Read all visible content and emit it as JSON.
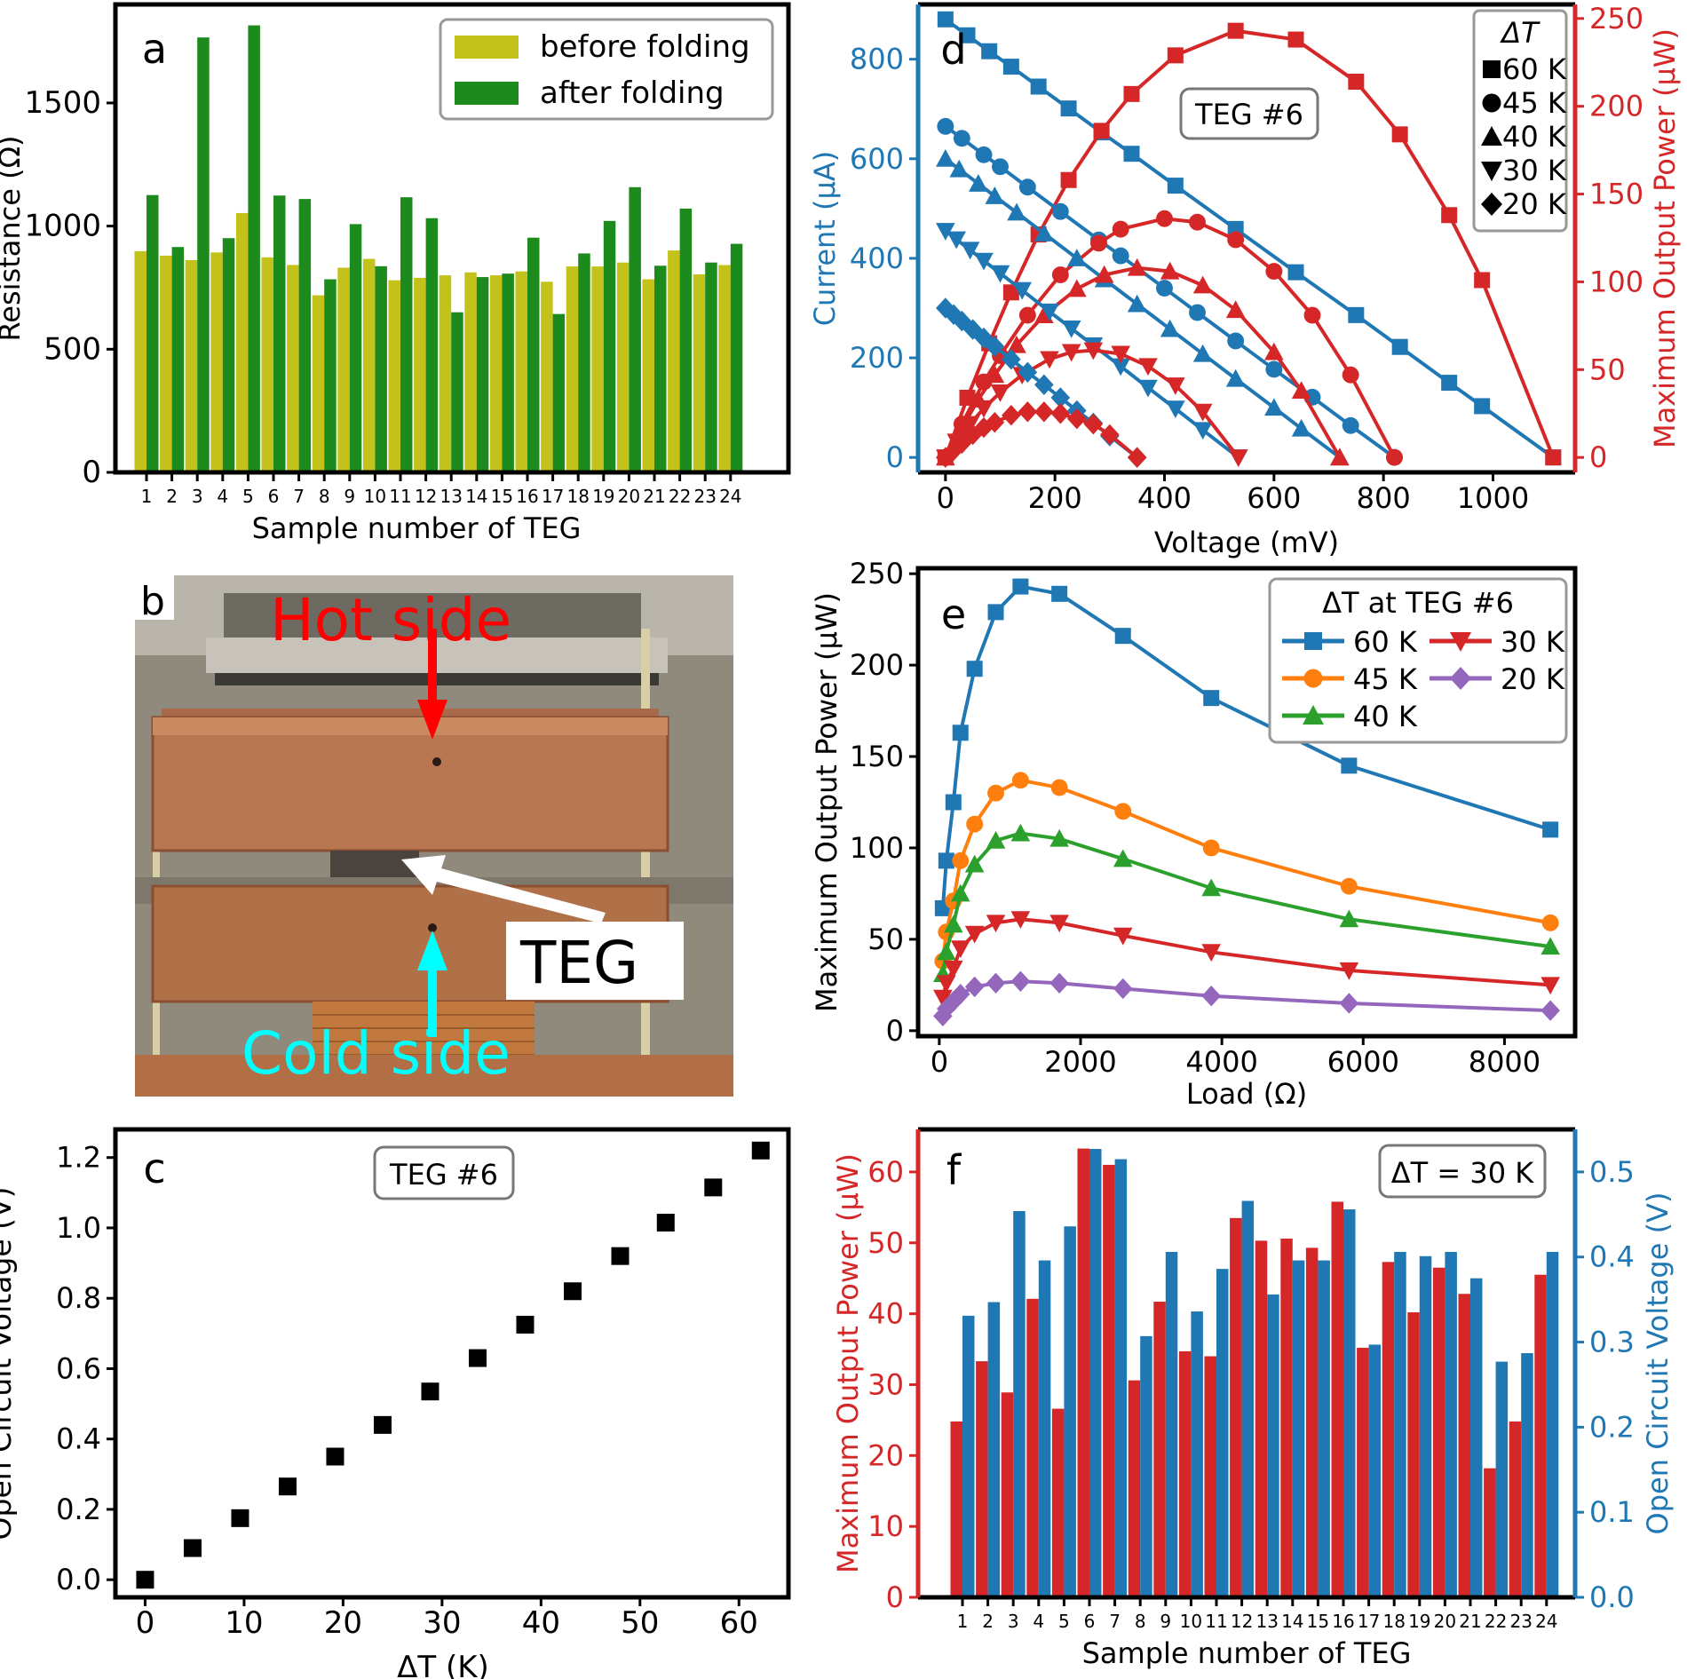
{
  "chart_data": [
    {
      "panel": "a",
      "type": "bar",
      "xlabel": "Sample number of TEG",
      "ylabel": "Resistance (Ω)",
      "ylim": [
        0,
        1900
      ],
      "yticks": [
        0,
        500,
        1000,
        1500
      ],
      "legend_position": "top-right",
      "categories": [
        "1",
        "2",
        "3",
        "4",
        "5",
        "6",
        "7",
        "8",
        "9",
        "10",
        "11",
        "12",
        "13",
        "14",
        "15",
        "16",
        "17",
        "18",
        "19",
        "20",
        "21",
        "22",
        "23",
        "24"
      ],
      "series": [
        {
          "name": "before folding",
          "color": "#c3c21a",
          "values": [
            898,
            880,
            862,
            893,
            1053,
            873,
            842,
            719,
            831,
            867,
            780,
            790,
            800,
            812,
            800,
            816,
            774,
            836,
            836,
            852,
            784,
            901,
            804,
            842
          ]
        },
        {
          "name": "after folding",
          "color": "#1c8a1c",
          "values": [
            1126,
            915,
            1766,
            951,
            1815,
            1124,
            1110,
            784,
            1008,
            837,
            1117,
            1032,
            650,
            793,
            807,
            953,
            643,
            889,
            1021,
            1158,
            839,
            1071,
            852,
            928
          ]
        }
      ]
    },
    {
      "panel": "b",
      "type": "photo",
      "labels": {
        "hot": "Hot side",
        "teg": "TEG",
        "cold": "Cold side"
      }
    },
    {
      "panel": "c",
      "type": "scatter",
      "xlabel": "ΔT (K)",
      "ylabel": "Open Circuit Voltage (V)",
      "xlim": [
        -3,
        65
      ],
      "ylim": [
        -0.05,
        1.28
      ],
      "xticks": [
        0,
        10,
        20,
        30,
        40,
        50,
        60
      ],
      "yticks": [
        0.0,
        0.2,
        0.4,
        0.6,
        0.8,
        1.0,
        1.2
      ],
      "annotation": "TEG #6",
      "x": [
        0,
        4.8,
        9.6,
        14.4,
        19.2,
        24,
        28.8,
        33.6,
        38.4,
        43.2,
        48,
        52.6,
        57.4,
        62.2
      ],
      "y": [
        0.0,
        0.09,
        0.175,
        0.265,
        0.35,
        0.44,
        0.535,
        0.63,
        0.725,
        0.82,
        0.92,
        1.015,
        1.115,
        1.22
      ]
    },
    {
      "panel": "d",
      "type": "line",
      "xlabel": "Voltage (mV)",
      "ylabel_left": "Current (µA)",
      "ylabel_right": "Maximum Output Power (µW)",
      "xlim": [
        -50,
        1150
      ],
      "ylim_left": [
        -30,
        910
      ],
      "ylim_right": [
        -8.5,
        258
      ],
      "xticks": [
        0,
        200,
        400,
        600,
        800,
        1000
      ],
      "yticks_left": [
        0,
        200,
        400,
        600,
        800
      ],
      "yticks_right": [
        0,
        50,
        100,
        150,
        200,
        250
      ],
      "annotation": "TEG #6",
      "legend_title": "ΔT",
      "series": [
        {
          "name": "60 K",
          "marker": "square",
          "open_circuit_mV": 1110,
          "short_circuit_uA": 880,
          "voltage": [
            0,
            40,
            80,
            120,
            170,
            225,
            285,
            340,
            420,
            530,
            640,
            750,
            830,
            920,
            980,
            1110
          ],
          "current": [
            880,
            848,
            816,
            785,
            745,
            701,
            653,
            610,
            546,
            459,
            372,
            286,
            222,
            150,
            103,
            0
          ],
          "power": [
            0,
            34,
            65,
            94,
            127,
            158,
            186,
            207,
            229,
            243,
            238,
            214,
            184,
            138,
            101,
            0
          ]
        },
        {
          "name": "45 K",
          "marker": "circle",
          "open_circuit_mV": 820,
          "short_circuit_uA": 665,
          "voltage": [
            0,
            30,
            70,
            100,
            150,
            210,
            280,
            320,
            400,
            460,
            530,
            600,
            670,
            740,
            820
          ],
          "current": [
            665,
            641,
            608,
            584,
            543,
            494,
            437,
            405,
            340,
            291,
            234,
            177,
            121,
            64,
            0
          ],
          "power": [
            0,
            19,
            43,
            58,
            81,
            104,
            122,
            130,
            136,
            134,
            124,
            106,
            81,
            47,
            0
          ]
        },
        {
          "name": "40 K",
          "marker": "triangle-up",
          "open_circuit_mV": 720,
          "short_circuit_uA": 600,
          "voltage": [
            0,
            25,
            60,
            90,
            130,
            180,
            240,
            290,
            350,
            410,
            470,
            530,
            600,
            650,
            720
          ],
          "current": [
            600,
            579,
            550,
            525,
            492,
            450,
            400,
            358,
            308,
            258,
            208,
            158,
            100,
            58,
            0
          ],
          "power": [
            0,
            14,
            33,
            47,
            64,
            81,
            96,
            104,
            108,
            106,
            98,
            84,
            60,
            38,
            0
          ]
        },
        {
          "name": "30 K",
          "marker": "triangle-down",
          "open_circuit_mV": 535,
          "short_circuit_uA": 455,
          "voltage": [
            0,
            20,
            45,
            70,
            100,
            140,
            190,
            230,
            270,
            320,
            370,
            420,
            470,
            535
          ],
          "current": [
            455,
            438,
            417,
            395,
            370,
            336,
            293,
            259,
            225,
            183,
            140,
            98,
            55,
            0
          ],
          "power": [
            0,
            9,
            19,
            28,
            37,
            47,
            56,
            60,
            61,
            59,
            52,
            41,
            26,
            0
          ]
        },
        {
          "name": "20 K",
          "marker": "diamond",
          "open_circuit_mV": 350,
          "short_circuit_uA": 300,
          "voltage": [
            0,
            15,
            30,
            50,
            70,
            90,
            120,
            150,
            180,
            210,
            240,
            270,
            300,
            350
          ],
          "current": [
            300,
            287,
            274,
            257,
            240,
            223,
            197,
            171,
            146,
            120,
            94,
            69,
            43,
            0
          ],
          "power": [
            0,
            4,
            8,
            13,
            17,
            20,
            24,
            26,
            26,
            25,
            22,
            19,
            13,
            0
          ]
        }
      ]
    },
    {
      "panel": "e",
      "type": "line",
      "xlabel": "Load (Ω)",
      "ylabel": "Maximum Output Power (µW)",
      "xlim": [
        -300,
        9000
      ],
      "ylim": [
        -3,
        253
      ],
      "xticks": [
        0,
        2000,
        4000,
        6000,
        8000
      ],
      "yticks": [
        0,
        50,
        100,
        150,
        200,
        250
      ],
      "legend_title": "ΔT at TEG #6",
      "load": [
        50,
        100,
        200,
        300,
        500,
        800,
        1150,
        1700,
        2600,
        3850,
        5800,
        8650
      ],
      "series": [
        {
          "name": "60 K",
          "color": "#1f77b4",
          "marker": "square",
          "values": [
            67,
            93,
            125,
            163,
            198,
            229,
            243,
            239,
            216,
            182,
            145,
            110
          ]
        },
        {
          "name": "45 K",
          "color": "#ff7f0e",
          "marker": "circle",
          "values": [
            38,
            54,
            71,
            93,
            113,
            130,
            137,
            133,
            120,
            100,
            79,
            59
          ]
        },
        {
          "name": "40 K",
          "color": "#2ca02c",
          "marker": "triangle-up",
          "values": [
            31,
            43,
            58,
            75,
            91,
            104,
            108,
            105,
            94,
            78,
            61,
            46
          ]
        },
        {
          "name": "30 K",
          "color": "#d62728",
          "marker": "triangle-down",
          "values": [
            18,
            26,
            34,
            45,
            53,
            59,
            61,
            59,
            52,
            43,
            33,
            25
          ]
        },
        {
          "name": "20 K",
          "color": "#9467bd",
          "marker": "diamond",
          "values": [
            8,
            12,
            16,
            20,
            24,
            26,
            27,
            26,
            23,
            19,
            15,
            11
          ]
        }
      ]
    },
    {
      "panel": "f",
      "type": "bar",
      "xlabel": "Sample number of TEG",
      "ylabel_left": "Maximum Output Power (µW)",
      "ylabel_right": "Open Circuit Voltage (V)",
      "ylim_left": [
        0,
        66
      ],
      "ylim_right": [
        0,
        0.55
      ],
      "yticks_left": [
        0,
        10,
        20,
        30,
        40,
        50,
        60
      ],
      "yticks_right": [
        0.0,
        0.1,
        0.2,
        0.3,
        0.4,
        0.5
      ],
      "annotation": "ΔT = 30 K",
      "categories": [
        "1",
        "2",
        "3",
        "4",
        "5",
        "6",
        "7",
        "8",
        "9",
        "10",
        "11",
        "12",
        "13",
        "14",
        "15",
        "16",
        "17",
        "18",
        "19",
        "20",
        "21",
        "22",
        "23",
        "24"
      ],
      "series": [
        {
          "name": "Maximum Output Power",
          "axis": "left",
          "color": "#d62728",
          "values": [
            24.8,
            33.3,
            28.9,
            42.1,
            26.6,
            63.3,
            61.0,
            30.6,
            41.7,
            34.7,
            34.0,
            53.5,
            50.3,
            50.6,
            49.3,
            55.8,
            35.2,
            47.3,
            40.2,
            46.5,
            42.8,
            18.2,
            24.8,
            45.5
          ]
        },
        {
          "name": "Open Circuit Voltage",
          "axis": "right",
          "color": "#1f77b4",
          "values": [
            0.331,
            0.347,
            0.454,
            0.396,
            0.436,
            0.527,
            0.515,
            0.307,
            0.406,
            0.336,
            0.386,
            0.466,
            0.356,
            0.396,
            0.396,
            0.456,
            0.297,
            0.406,
            0.401,
            0.406,
            0.375,
            0.277,
            0.287,
            0.406
          ]
        }
      ]
    }
  ]
}
